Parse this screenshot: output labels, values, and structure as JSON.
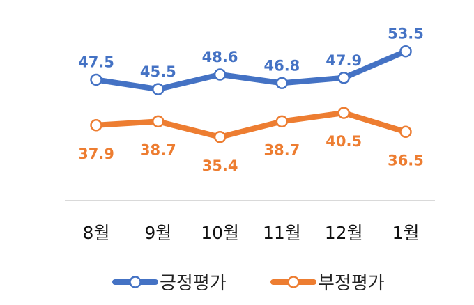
{
  "chart_data": {
    "type": "line",
    "categories": [
      "8월",
      "9월",
      "10월",
      "11월",
      "12월",
      "1월"
    ],
    "series": [
      {
        "name": "긍정평가",
        "color": "#4472C4",
        "values": [
          47.5,
          45.5,
          48.6,
          46.8,
          47.9,
          53.5
        ],
        "labels": [
          "47.5",
          "45.5",
          "48.6",
          "46.8",
          "47.9",
          "53.5"
        ],
        "label_position": "above"
      },
      {
        "name": "부정평가",
        "color": "#ED7D31",
        "values": [
          37.9,
          38.7,
          35.4,
          38.7,
          40.5,
          36.5
        ],
        "labels": [
          "37.9",
          "38.7",
          "35.4",
          "38.7",
          "40.5",
          "36.5"
        ],
        "label_position": "below"
      }
    ],
    "legend": "bottom",
    "grid": false
  }
}
